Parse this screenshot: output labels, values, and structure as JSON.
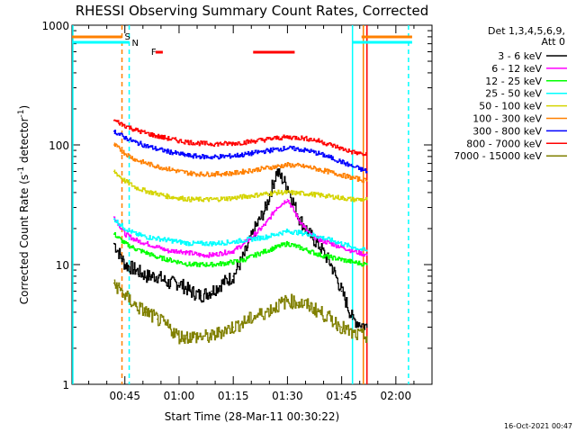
{
  "chart_data": {
    "type": "line",
    "title": "RHESSI Observing Summary Count Rates, Corrected",
    "xlabel": "Start Time (28-Mar-11 00:30:22)",
    "ylabel_main": "Corrected Count Rate (s",
    "ylabel_sup1": "-1",
    "ylabel_mid": " detector",
    "ylabel_sup2": "-1",
    "ylabel_end": ")",
    "y_scale": "log",
    "ylim": [
      1,
      1000
    ],
    "xlim_minutes": [
      30.37,
      130.0
    ],
    "y_ticks": [
      {
        "value": 1,
        "label": "1"
      },
      {
        "value": 10,
        "label": "10"
      },
      {
        "value": 100,
        "label": "100"
      },
      {
        "value": 1000,
        "label": "1000"
      }
    ],
    "x_ticks": [
      {
        "minute": 45,
        "label": "00:45"
      },
      {
        "minute": 60,
        "label": "01:00"
      },
      {
        "minute": 75,
        "label": "01:15"
      },
      {
        "minute": 90,
        "label": "01:30"
      },
      {
        "minute": 105,
        "label": "01:45"
      },
      {
        "minute": 120,
        "label": "02:00"
      }
    ],
    "legend_header": [
      "Det 1,3,4,5,6,9,",
      "Att 0"
    ],
    "legend_placement": "right",
    "footer_date": "16-Oct-2021 00:47",
    "series": [
      {
        "name": "3 - 6 keV",
        "color": "#000000",
        "x": [
          42,
          45,
          48,
          51,
          54,
          57,
          60,
          63,
          66,
          69,
          72,
          75,
          78,
          81,
          84,
          87,
          90,
          93,
          96,
          99,
          102,
          105,
          108,
          112
        ],
        "y": [
          15,
          10,
          9,
          8,
          8,
          7,
          7,
          6,
          5.5,
          6,
          7,
          8,
          12,
          20,
          30,
          60,
          45,
          25,
          18,
          14,
          10,
          6,
          3.5,
          3
        ]
      },
      {
        "name": "6 - 12 keV",
        "color": "#ff00ff",
        "x": [
          42,
          45,
          48,
          51,
          54,
          57,
          60,
          63,
          66,
          69,
          72,
          75,
          78,
          81,
          84,
          87,
          90,
          93,
          96,
          99,
          102,
          105,
          108,
          112
        ],
        "y": [
          25,
          18,
          16,
          15,
          14,
          13,
          13,
          12.5,
          12,
          12,
          12.5,
          13,
          15,
          18,
          22,
          30,
          35,
          24,
          18,
          16,
          15,
          14,
          13,
          12
        ]
      },
      {
        "name": "12 - 25 keV",
        "color": "#00ff00",
        "x": [
          42,
          45,
          48,
          51,
          54,
          57,
          60,
          63,
          66,
          69,
          72,
          75,
          78,
          81,
          84,
          87,
          90,
          93,
          96,
          99,
          102,
          105,
          108,
          112
        ],
        "y": [
          18,
          15,
          13.5,
          12.5,
          11.5,
          11,
          10.5,
          10,
          10,
          10,
          10.2,
          10.5,
          11,
          12,
          13,
          14,
          15,
          14,
          13,
          12,
          11.5,
          11,
          10.5,
          10
        ]
      },
      {
        "name": "25 - 50 keV",
        "color": "#00ffff",
        "x": [
          42,
          45,
          48,
          51,
          54,
          57,
          60,
          63,
          66,
          69,
          72,
          75,
          78,
          81,
          84,
          87,
          90,
          93,
          96,
          99,
          102,
          105,
          108,
          112
        ],
        "y": [
          24,
          20,
          18,
          17,
          16.5,
          16,
          15.5,
          15,
          15,
          15,
          15.2,
          15.5,
          16,
          16.5,
          17,
          18,
          19,
          18.5,
          18,
          17,
          16,
          15,
          14,
          13
        ]
      },
      {
        "name": "50 - 100 keV",
        "color": "#d4d400",
        "x": [
          42,
          45,
          48,
          51,
          54,
          57,
          60,
          63,
          66,
          69,
          72,
          75,
          78,
          81,
          84,
          87,
          90,
          93,
          96,
          99,
          102,
          105,
          108,
          112
        ],
        "y": [
          60,
          50,
          44,
          41,
          39,
          37,
          36,
          35,
          35,
          35,
          35.5,
          36,
          37,
          38,
          39,
          40,
          40,
          39.5,
          39,
          38,
          37,
          36,
          35,
          35
        ]
      },
      {
        "name": "100 - 300 keV",
        "color": "#ff8000",
        "x": [
          42,
          45,
          48,
          51,
          54,
          57,
          60,
          63,
          66,
          69,
          72,
          75,
          78,
          81,
          84,
          87,
          90,
          93,
          96,
          99,
          102,
          105,
          108,
          112
        ],
        "y": [
          100,
          85,
          75,
          70,
          66,
          63,
          60,
          58,
          57,
          57,
          57.5,
          58,
          60,
          62,
          64,
          66,
          68,
          67,
          65,
          62,
          59,
          56,
          53,
          50
        ]
      },
      {
        "name": "300 - 800 keV",
        "color": "#0000ff",
        "x": [
          42,
          45,
          48,
          51,
          54,
          57,
          60,
          63,
          66,
          69,
          72,
          75,
          78,
          81,
          84,
          87,
          90,
          93,
          96,
          99,
          102,
          105,
          108,
          112
        ],
        "y": [
          130,
          115,
          105,
          98,
          92,
          88,
          84,
          81,
          80,
          79,
          80,
          81,
          83,
          86,
          89,
          92,
          94,
          92,
          89,
          84,
          78,
          72,
          66,
          60
        ]
      },
      {
        "name": "800 - 7000 keV",
        "color": "#ff0000",
        "x": [
          42,
          45,
          48,
          51,
          54,
          57,
          60,
          63,
          66,
          69,
          72,
          75,
          78,
          81,
          84,
          87,
          90,
          93,
          96,
          99,
          102,
          105,
          108,
          112
        ],
        "y": [
          160,
          145,
          133,
          125,
          118,
          113,
          108,
          105,
          103,
          102,
          102,
          103,
          105,
          108,
          111,
          114,
          116,
          115,
          112,
          107,
          100,
          93,
          87,
          82
        ]
      },
      {
        "name": "7000 - 15000 keV",
        "color": "#808000",
        "x": [
          42,
          45,
          48,
          51,
          54,
          57,
          60,
          63,
          66,
          69,
          72,
          75,
          78,
          81,
          84,
          87,
          90,
          93,
          96,
          99,
          102,
          105,
          108,
          112
        ],
        "y": [
          7,
          5.5,
          4.5,
          4,
          3.5,
          3,
          2.5,
          2.5,
          2.5,
          2.5,
          2.8,
          3,
          3.3,
          3.7,
          4,
          4.5,
          5,
          4.8,
          4.5,
          4,
          3.5,
          3,
          2.6,
          2.5
        ]
      }
    ],
    "markers": [
      {
        "label": "S",
        "color": "#ff8000",
        "minute": 44.2
      },
      {
        "label": "N",
        "color": "#00ffff",
        "minute": 46.2
      },
      {
        "label": "F",
        "color": "#ff0000",
        "minute": 51.5
      }
    ]
  }
}
